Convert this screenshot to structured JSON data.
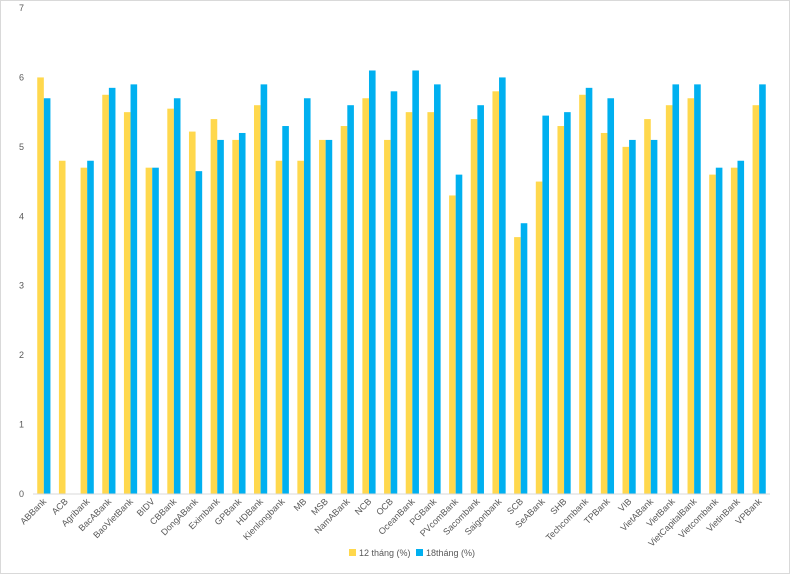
{
  "chart_data": {
    "type": "bar",
    "title": "",
    "xlabel": "",
    "ylabel": "",
    "ylim": [
      0,
      7
    ],
    "yticks": [
      0,
      1,
      2,
      3,
      4,
      5,
      6,
      7
    ],
    "grid": false,
    "legend_position": "bottom",
    "categories": [
      "ABBank",
      "ACB",
      "Agribank",
      "BacABank",
      "BaoVietBank",
      "BIDV",
      "CBBank",
      "DongABank",
      "Eximbank",
      "GPBank",
      "HDBank",
      "Kienlongbank",
      "MB",
      "MSB",
      "NamABank",
      "NCB",
      "OCB",
      "OceanBank",
      "PGBank",
      "PVcomBank",
      "Sacombank",
      "Saigonbank",
      "SCB",
      "SeABank",
      "SHB",
      "Techcombank",
      "TPBank",
      "VIB",
      "VietABank",
      "VietBank",
      "VietCapitalBank",
      "Vietcombank",
      "VietinBank",
      "VPBank"
    ],
    "series": [
      {
        "name": "12 tháng (%)",
        "color": "#FFD84D",
        "values": [
          6.0,
          4.8,
          4.7,
          5.75,
          5.5,
          4.7,
          5.55,
          5.22,
          5.4,
          5.1,
          5.6,
          4.8,
          4.8,
          5.1,
          5.3,
          5.7,
          5.1,
          5.5,
          5.5,
          4.3,
          5.4,
          5.8,
          3.7,
          4.5,
          5.3,
          5.75,
          5.2,
          5.0,
          5.4,
          5.6,
          5.7,
          4.6,
          4.7,
          5.6
        ]
      },
      {
        "name": "18tháng (%)",
        "color": "#00B0F0",
        "values": [
          5.7,
          null,
          4.8,
          5.85,
          5.9,
          4.7,
          5.7,
          4.65,
          5.1,
          5.2,
          5.9,
          5.3,
          5.7,
          5.1,
          5.6,
          6.1,
          5.8,
          6.1,
          5.9,
          4.6,
          5.6,
          6.0,
          3.9,
          5.45,
          5.5,
          5.85,
          5.7,
          5.1,
          5.1,
          5.9,
          5.9,
          4.7,
          4.8,
          5.9
        ]
      }
    ]
  }
}
